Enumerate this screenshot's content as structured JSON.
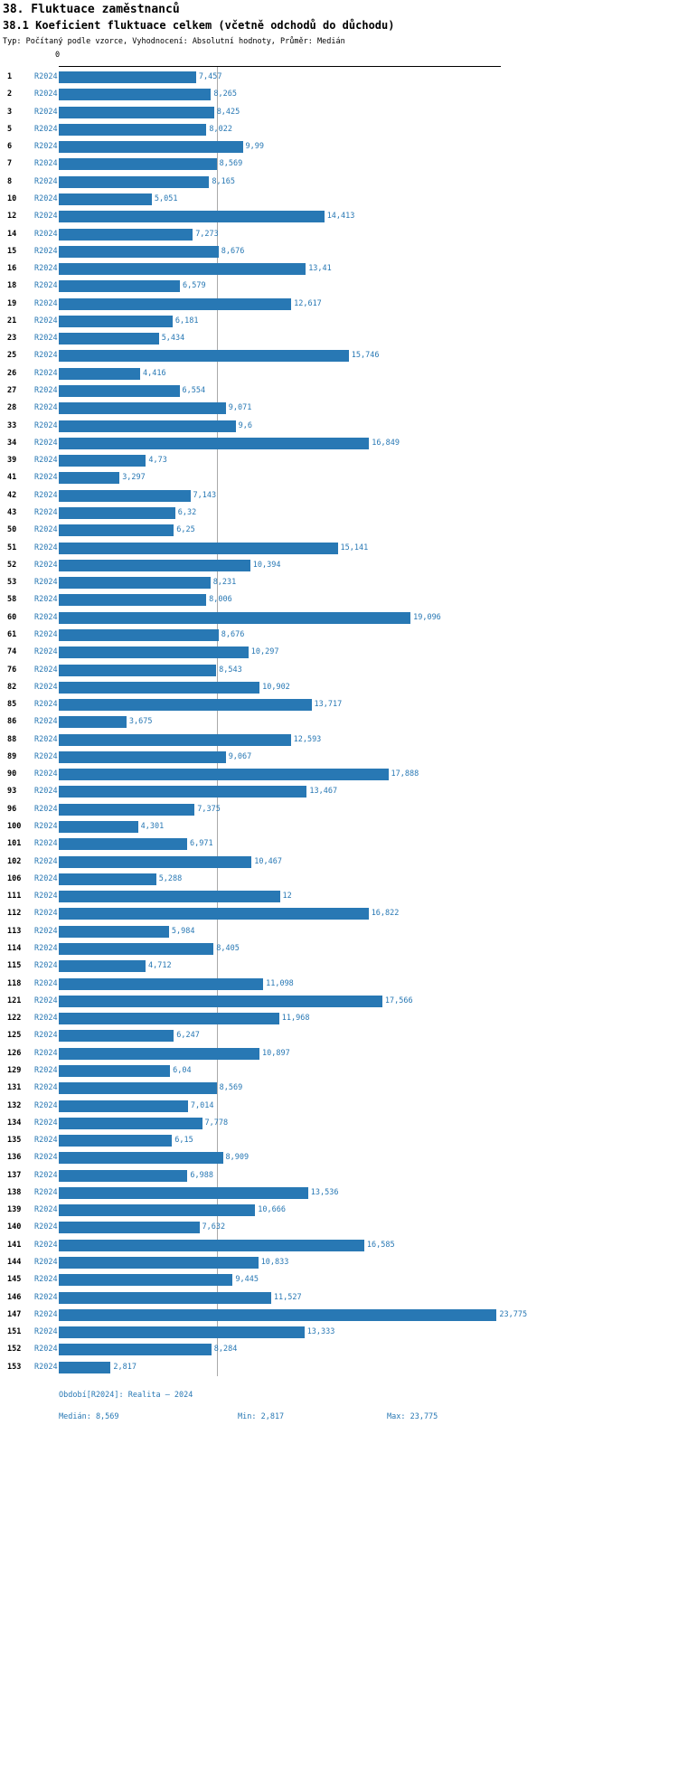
{
  "title": "38. Fluktuace zaměstnanců",
  "subtitle": "38.1 Koeficient fluktuace celkem (včetně odchodů do důchodu)",
  "meta": "Typ: Počítaný podle vzorce, Vyhodnocení: Absolutní hodnoty, Průměr: Medián",
  "chart_data": {
    "type": "bar",
    "orientation": "horizontal",
    "title": "38.1 Koeficient fluktuace celkem (včetně odchodů do důchodu)",
    "zero_tick_label": "0",
    "xlim": [
      0,
      24
    ],
    "median": 8.569,
    "min": 2.817,
    "max": 23.775,
    "bar_color": "#2878b4",
    "label_color": "#2878b4",
    "median_line_color": "#aaaaaa",
    "categories": [
      "1",
      "2",
      "3",
      "5",
      "6",
      "7",
      "8",
      "10",
      "12",
      "14",
      "15",
      "16",
      "18",
      "19",
      "21",
      "23",
      "25",
      "26",
      "27",
      "28",
      "33",
      "34",
      "39",
      "41",
      "42",
      "43",
      "50",
      "51",
      "52",
      "53",
      "58",
      "60",
      "61",
      "74",
      "76",
      "82",
      "85",
      "86",
      "88",
      "89",
      "90",
      "93",
      "96",
      "100",
      "101",
      "102",
      "106",
      "111",
      "112",
      "113",
      "114",
      "115",
      "118",
      "121",
      "122",
      "125",
      "126",
      "129",
      "131",
      "132",
      "134",
      "135",
      "136",
      "137",
      "138",
      "139",
      "140",
      "141",
      "144",
      "145",
      "146",
      "147",
      "151",
      "152",
      "153"
    ],
    "series": [
      {
        "name": "R2024",
        "values": [
          7.457,
          8.265,
          8.425,
          8.022,
          9.99,
          8.569,
          8.165,
          5.051,
          14.413,
          7.273,
          8.676,
          13.41,
          6.579,
          12.617,
          6.181,
          5.434,
          15.746,
          4.416,
          6.554,
          9.071,
          9.6,
          16.849,
          4.73,
          3.297,
          7.143,
          6.32,
          6.25,
          15.141,
          10.394,
          8.231,
          8.006,
          19.096,
          8.676,
          10.297,
          8.543,
          10.902,
          13.717,
          3.675,
          12.593,
          9.067,
          17.888,
          13.467,
          7.375,
          4.301,
          6.971,
          10.467,
          5.288,
          12,
          16.822,
          5.984,
          8.405,
          4.712,
          11.098,
          17.566,
          11.968,
          6.247,
          10.897,
          6.04,
          8.569,
          7.014,
          7.778,
          6.15,
          8.909,
          6.988,
          13.536,
          10.666,
          7.632,
          16.585,
          10.833,
          9.445,
          11.527,
          23.775,
          13.333,
          8.284,
          2.817
        ],
        "value_labels": [
          "7,457",
          "8,265",
          "8,425",
          "8,022",
          "9,99",
          "8,569",
          "8,165",
          "5,051",
          "14,413",
          "7,273",
          "8,676",
          "13,41",
          "6,579",
          "12,617",
          "6,181",
          "5,434",
          "15,746",
          "4,416",
          "6,554",
          "9,071",
          "9,6",
          "16,849",
          "4,73",
          "3,297",
          "7,143",
          "6,32",
          "6,25",
          "15,141",
          "10,394",
          "8,231",
          "8,006",
          "19,096",
          "8,676",
          "10,297",
          "8,543",
          "10,902",
          "13,717",
          "3,675",
          "12,593",
          "9,067",
          "17,888",
          "13,467",
          "7,375",
          "4,301",
          "6,971",
          "10,467",
          "5,288",
          "12",
          "16,822",
          "5,984",
          "8,405",
          "4,712",
          "11,098",
          "17,566",
          "11,968",
          "6,247",
          "10,897",
          "6,04",
          "8,569",
          "7,014",
          "7,778",
          "6,15",
          "8,909",
          "6,988",
          "13,536",
          "10,666",
          "7,632",
          "16,585",
          "10,833",
          "9,445",
          "11,527",
          "23,775",
          "13,333",
          "8,284",
          "2,817"
        ]
      }
    ]
  },
  "footer": {
    "period": "Období[R2024]: Realita – 2024",
    "median": "Medián: 8,569",
    "min": "Min: 2,817",
    "max": "Max: 23,775"
  }
}
